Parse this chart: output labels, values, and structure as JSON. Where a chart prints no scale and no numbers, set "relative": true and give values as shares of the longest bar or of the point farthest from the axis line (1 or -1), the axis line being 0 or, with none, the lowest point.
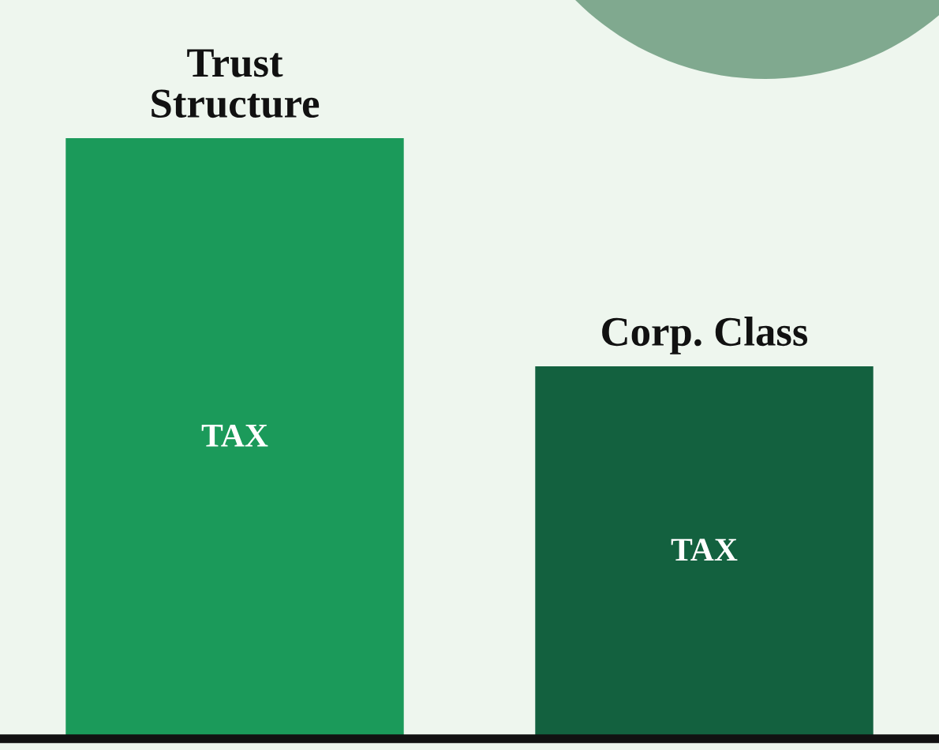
{
  "chart_data": {
    "type": "bar",
    "relative": true,
    "categories": [
      "Trust\nStructure",
      "Corp. Class"
    ],
    "values": [
      1,
      0.62
    ],
    "colors": [
      "#1b9a5a",
      "#13613f"
    ],
    "annotations": [
      "TAX",
      "TAX"
    ]
  }
}
